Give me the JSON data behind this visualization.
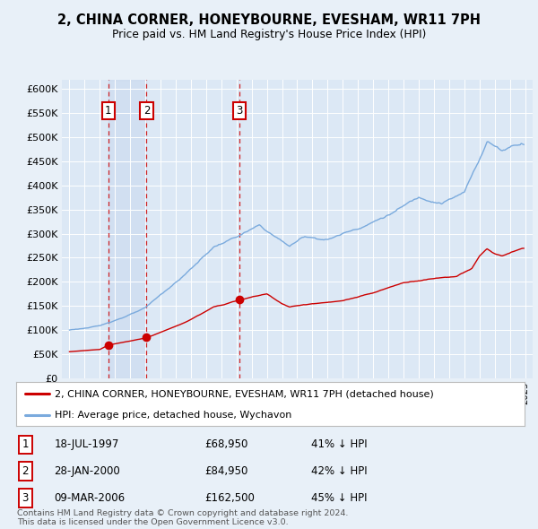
{
  "title": "2, CHINA CORNER, HONEYBOURNE, EVESHAM, WR11 7PH",
  "subtitle": "Price paid vs. HM Land Registry's House Price Index (HPI)",
  "ylim": [
    0,
    620000
  ],
  "yticks": [
    0,
    50000,
    100000,
    150000,
    200000,
    250000,
    300000,
    350000,
    400000,
    450000,
    500000,
    550000,
    600000
  ],
  "ytick_labels": [
    "£0",
    "£50K",
    "£100K",
    "£150K",
    "£200K",
    "£250K",
    "£300K",
    "£350K",
    "£400K",
    "£450K",
    "£500K",
    "£550K",
    "£600K"
  ],
  "bg_color": "#e8f0f8",
  "plot_bg": "#dce8f5",
  "red_color": "#cc0000",
  "blue_color": "#7aaadd",
  "sale_markers": [
    {
      "label": "1",
      "date": 1997.55,
      "price": 68950
    },
    {
      "label": "2",
      "date": 2000.08,
      "price": 84950
    },
    {
      "label": "3",
      "date": 2006.19,
      "price": 162500
    }
  ],
  "legend_red_label": "2, CHINA CORNER, HONEYBOURNE, EVESHAM, WR11 7PH (detached house)",
  "legend_blue_label": "HPI: Average price, detached house, Wychavon",
  "table_rows": [
    {
      "num": "1",
      "date": "18-JUL-1997",
      "price": "£68,950",
      "hpi": "41% ↓ HPI"
    },
    {
      "num": "2",
      "date": "28-JAN-2000",
      "price": "£84,950",
      "hpi": "42% ↓ HPI"
    },
    {
      "num": "3",
      "date": "09-MAR-2006",
      "price": "£162,500",
      "hpi": "45% ↓ HPI"
    }
  ],
  "footer": "Contains HM Land Registry data © Crown copyright and database right 2024.\nThis data is licensed under the Open Government Licence v3.0.",
  "xmin": 1994.5,
  "xmax": 2025.5
}
